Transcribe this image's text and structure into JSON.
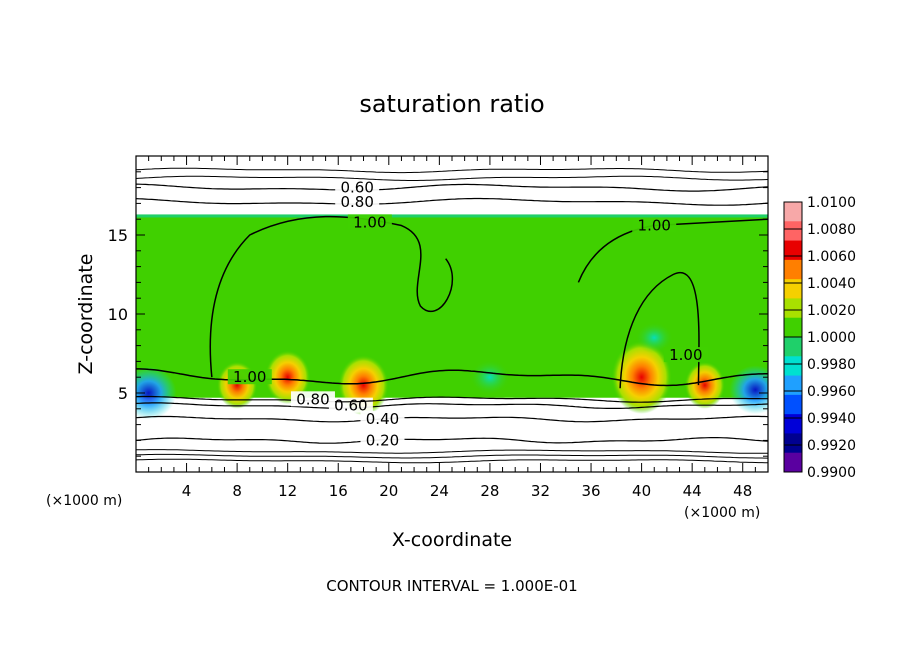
{
  "chart_data": {
    "type": "heatmap",
    "title": "saturation ratio",
    "xlabel": "X-coordinate",
    "ylabel": "Z-coordinate",
    "x_unit_left": "(×1000 m)",
    "x_unit_right": "(×1000 m)",
    "xlim": [
      0,
      50
    ],
    "ylim": [
      0,
      20
    ],
    "x_ticks": [
      4,
      8,
      12,
      16,
      20,
      24,
      28,
      32,
      36,
      40,
      44,
      48
    ],
    "y_ticks": [
      5,
      10,
      15
    ],
    "footer": "CONTOUR INTERVAL = 1.000E-01",
    "colorbar": {
      "labels": [
        "1.0100",
        "1.0080",
        "1.0060",
        "1.0040",
        "1.0020",
        "1.0000",
        "0.9980",
        "0.9960",
        "0.9940",
        "0.9920",
        "0.9900"
      ],
      "colors": [
        "#f7a8a8",
        "#ff6464",
        "#e80000",
        "#ff7f00",
        "#f5d000",
        "#a8e000",
        "#40d000",
        "#1fd06a",
        "#00e0d0",
        "#1fa0ff",
        "#0050ff",
        "#0000d8",
        "#000090",
        "#5a00a0"
      ]
    },
    "contours": [
      {
        "label": "0.20",
        "level": 0.2,
        "z": 2.0,
        "label_x": 19.5
      },
      {
        "label": "0.40",
        "level": 0.4,
        "z": 3.35,
        "label_x": 19.5
      },
      {
        "label": "0.60",
        "level": 0.6,
        "z": 4.2,
        "label_x": 17.0
      },
      {
        "label": "0.80",
        "level": 0.8,
        "z": 4.6,
        "label_x": 14.0
      },
      {
        "label": "1.00",
        "level": 1.0,
        "z": 6.0,
        "label_x": 9.0
      },
      {
        "label": "0.60",
        "level": 0.6,
        "z": 18.0,
        "label_x": 17.5
      },
      {
        "label": "0.80",
        "level": 0.8,
        "z": 17.1,
        "label_x": 17.5
      },
      {
        "label": "1.00",
        "level": 1.0,
        "z": 15.8,
        "label_x": 18.5
      },
      {
        "label": "1.00",
        "level": 1.0,
        "z": 15.6,
        "label_x": 41.0
      },
      {
        "label": "1.00",
        "level": 1.0,
        "z": 7.4,
        "label_x": 43.5
      }
    ],
    "field_summary": {
      "cloud_layer_z": [
        4.7,
        16.3
      ],
      "background_value": 1.0,
      "maxima": [
        {
          "x": 40.0,
          "z": 6.0,
          "value": 1.007
        },
        {
          "x": 12.0,
          "z": 6.0,
          "value": 1.004
        },
        {
          "x": 18.0,
          "z": 5.5,
          "value": 1.005
        },
        {
          "x": 8.0,
          "z": 5.5,
          "value": 1.003
        },
        {
          "x": 45.0,
          "z": 5.5,
          "value": 1.003
        }
      ],
      "minima": [
        {
          "x": 1.0,
          "z": 5.0,
          "value": 0.993
        },
        {
          "x": 28.0,
          "z": 6.0,
          "value": 0.997
        },
        {
          "x": 41.0,
          "z": 8.5,
          "value": 0.998
        },
        {
          "x": 49.0,
          "z": 5.2,
          "value": 0.994
        }
      ]
    }
  }
}
